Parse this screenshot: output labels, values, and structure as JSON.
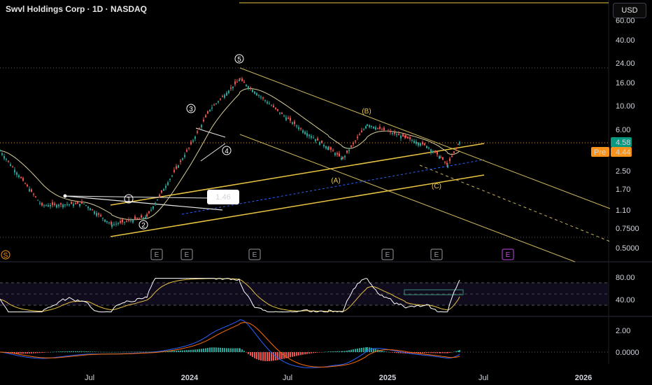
{
  "header": {
    "title": "Swvl Holdings Corp · 1D · NASDAQ",
    "currency": "USD"
  },
  "colors": {
    "up": "#26a69a",
    "down": "#ef5350",
    "ema": "#d8cf9a",
    "channel": "#e9c442",
    "white_line": "#e6e6e6",
    "rsi": "#ffffff",
    "rsi_ma": "#e9c442",
    "macd": "#2962ff",
    "signal": "#ff6d00",
    "pre": "#f7931a",
    "last": "#089981"
  },
  "price_axis": {
    "ticks": [
      "60.00",
      "40.00",
      "24.00",
      "16.00",
      "10.00",
      "6.00",
      "4.58",
      "4.44",
      "2.50",
      "1.70",
      "1.10",
      "0.7500",
      "0.5000"
    ]
  },
  "badges": {
    "last_price": "4.58",
    "pre_label": "Pre",
    "pre_price": "4.44",
    "measure": "1.46"
  },
  "earnings_markers": [
    "E",
    "E",
    "E",
    "E",
    "E",
    "E"
  ],
  "s_marker": "S",
  "waves": [
    "1",
    "2",
    "3",
    "4",
    "5",
    "(A)",
    "(B)",
    "(C)"
  ],
  "rsi": {
    "ticks": [
      "80.00",
      "40.00"
    ]
  },
  "macd": {
    "ticks": [
      "2.00",
      "0.0000"
    ]
  },
  "time_axis": [
    "Jul",
    "2024",
    "Jul",
    "2025",
    "Jul",
    "2026"
  ],
  "chart_data": {
    "type": "candlestick",
    "x": [
      "2023-04",
      "2023-07",
      "2023-09",
      "2023-12",
      "2024-01",
      "2024-02",
      "2024-03",
      "2024-04",
      "2024-06",
      "2024-08",
      "2024-10",
      "2024-11",
      "2024-12",
      "2025-01",
      "2025-02",
      "2025-03",
      "2025-04",
      "2025-05"
    ],
    "series": [
      {
        "name": "Close",
        "values": [
          3.8,
          1.2,
          1.25,
          0.8,
          0.95,
          4.0,
          9.0,
          17.0,
          8.5,
          6.0,
          4.0,
          3.2,
          6.6,
          5.0,
          4.2,
          3.3,
          2.8,
          4.58
        ]
      }
    ],
    "yscale": "log",
    "ylim": [
      0.45,
      70
    ],
    "last_price": 4.58,
    "pre_market_price": 4.44,
    "annotations": [
      "1",
      "2",
      "3",
      "4",
      "5",
      "(A)",
      "(B)",
      "(C)",
      "1.46"
    ]
  }
}
